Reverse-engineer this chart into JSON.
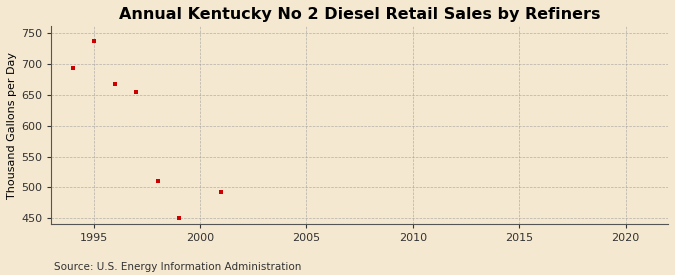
{
  "title": "Annual Kentucky No 2 Diesel Retail Sales by Refiners",
  "ylabel": "Thousand Gallons per Day",
  "source": "Source: U.S. Energy Information Administration",
  "x_data": [
    1994,
    1995,
    1996,
    1997,
    1998,
    1999,
    2001
  ],
  "y_data": [
    693,
    737,
    667,
    655,
    510,
    451,
    493
  ],
  "marker_color": "#cc0000",
  "marker": "s",
  "marker_size": 3.5,
  "xlim": [
    1993,
    2022
  ],
  "ylim": [
    440,
    762
  ],
  "yticks": [
    450,
    500,
    550,
    600,
    650,
    700,
    750
  ],
  "xticks": [
    1995,
    2000,
    2005,
    2010,
    2015,
    2020
  ],
  "background_color": "#f5e8d0",
  "grid_color": "#999999",
  "title_fontsize": 11.5,
  "label_fontsize": 8,
  "tick_fontsize": 8,
  "source_fontsize": 7.5
}
